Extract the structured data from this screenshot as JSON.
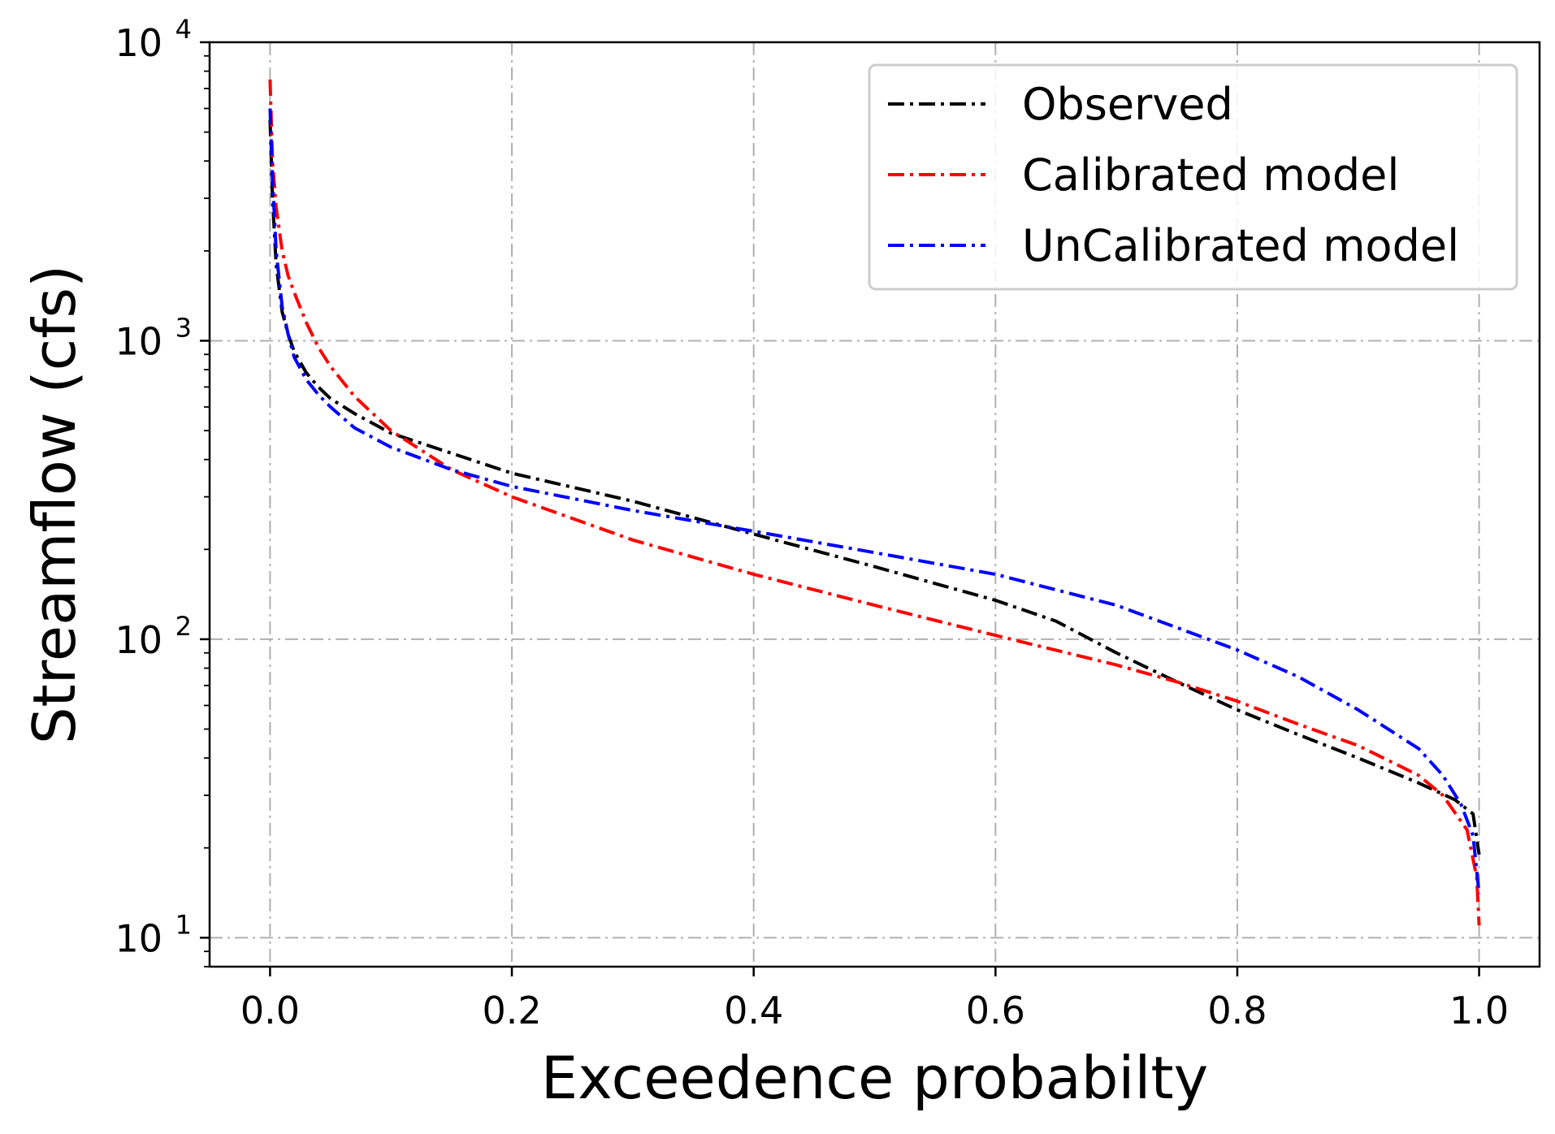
{
  "chart_data": {
    "type": "line",
    "xlabel": "Exceedence probabilty",
    "ylabel": "Streamflow (cfs)",
    "xlim": [
      -0.05,
      1.05
    ],
    "ylim": [
      8,
      10000
    ],
    "yscale": "log",
    "grid": true,
    "legend_position": "top-right",
    "x_ticks": [
      "0.0",
      "0.2",
      "0.4",
      "0.6",
      "0.8",
      "1.0"
    ],
    "y_ticks": [
      {
        "base": "10",
        "exp": "1"
      },
      {
        "base": "10",
        "exp": "2"
      },
      {
        "base": "10",
        "exp": "3"
      },
      {
        "base": "10",
        "exp": "4"
      }
    ],
    "series": [
      {
        "name": "Observed",
        "color": "#000000",
        "x": [
          0.0,
          0.002,
          0.005,
          0.01,
          0.015,
          0.02,
          0.03,
          0.04,
          0.05,
          0.07,
          0.1,
          0.15,
          0.2,
          0.3,
          0.4,
          0.5,
          0.6,
          0.65,
          0.7,
          0.75,
          0.8,
          0.85,
          0.9,
          0.95,
          0.98,
          0.995,
          1.0
        ],
        "y": [
          5500,
          3000,
          1800,
          1250,
          1050,
          920,
          780,
          700,
          640,
          570,
          490,
          420,
          360,
          290,
          225,
          175,
          135,
          115,
          90,
          72,
          58,
          48,
          40,
          33,
          29,
          26,
          19
        ]
      },
      {
        "name": "Calibrated model",
        "color": "#ff0000",
        "x": [
          0.0,
          0.002,
          0.005,
          0.01,
          0.015,
          0.02,
          0.03,
          0.04,
          0.05,
          0.07,
          0.1,
          0.15,
          0.2,
          0.3,
          0.4,
          0.5,
          0.6,
          0.7,
          0.75,
          0.8,
          0.85,
          0.9,
          0.95,
          0.97,
          0.99,
          0.998,
          1.0
        ],
        "y": [
          7500,
          4000,
          2800,
          2000,
          1650,
          1450,
          1150,
          950,
          820,
          650,
          500,
          370,
          300,
          215,
          165,
          130,
          103,
          82,
          72,
          62,
          52,
          44,
          35,
          30,
          23,
          16,
          11
        ]
      },
      {
        "name": "UnCalibrated model",
        "color": "#0000ff",
        "x": [
          0.0,
          0.002,
          0.005,
          0.01,
          0.015,
          0.02,
          0.03,
          0.04,
          0.05,
          0.07,
          0.1,
          0.15,
          0.2,
          0.3,
          0.4,
          0.5,
          0.6,
          0.7,
          0.8,
          0.85,
          0.9,
          0.95,
          0.97,
          0.985,
          0.995,
          1.0
        ],
        "y": [
          6000,
          3500,
          2000,
          1300,
          1050,
          880,
          740,
          660,
          600,
          510,
          440,
          370,
          325,
          270,
          230,
          195,
          165,
          130,
          92,
          75,
          58,
          43,
          35,
          28,
          22,
          14
        ]
      }
    ]
  }
}
